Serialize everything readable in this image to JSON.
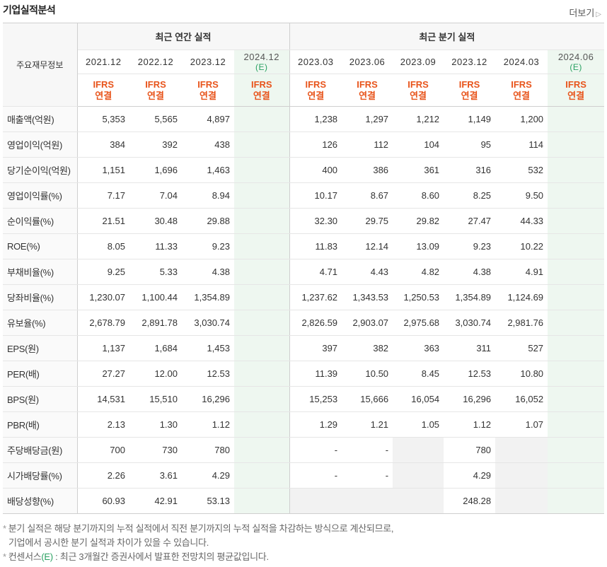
{
  "header": {
    "title": "기업실적분석",
    "more_label": "더보기",
    "more_arrow": "▷"
  },
  "table": {
    "side_label": "주요재무정보",
    "annual_group": "최근 연간 실적",
    "quarter_group": "최근 분기 실적",
    "ifrs_line1": "IFRS",
    "ifrs_line2": "연결",
    "estimate_mark": "(E)",
    "annual_periods": [
      "2021.12",
      "2022.12",
      "2023.12",
      "2024.12"
    ],
    "quarter_periods": [
      "2023.03",
      "2023.06",
      "2023.09",
      "2023.12",
      "2024.03",
      "2024.06"
    ],
    "rows": [
      {
        "label": "매출액(억원)",
        "values": [
          "5,353",
          "5,565",
          "4,897",
          "",
          "1,238",
          "1,297",
          "1,212",
          "1,149",
          "1,200",
          ""
        ]
      },
      {
        "label": "영업이익(억원)",
        "values": [
          "384",
          "392",
          "438",
          "",
          "126",
          "112",
          "104",
          "95",
          "114",
          ""
        ]
      },
      {
        "label": "당기순이익(억원)",
        "values": [
          "1,151",
          "1,696",
          "1,463",
          "",
          "400",
          "386",
          "361",
          "316",
          "532",
          ""
        ]
      },
      {
        "label": "영업이익률(%)",
        "values": [
          "7.17",
          "7.04",
          "8.94",
          "",
          "10.17",
          "8.67",
          "8.60",
          "8.25",
          "9.50",
          ""
        ]
      },
      {
        "label": "순이익률(%)",
        "values": [
          "21.51",
          "30.48",
          "29.88",
          "",
          "32.30",
          "29.75",
          "29.82",
          "27.47",
          "44.33",
          ""
        ]
      },
      {
        "label": "ROE(%)",
        "values": [
          "8.05",
          "11.33",
          "9.23",
          "",
          "11.83",
          "12.14",
          "13.09",
          "9.23",
          "10.22",
          ""
        ]
      },
      {
        "label": "부채비율(%)",
        "values": [
          "9.25",
          "5.33",
          "4.38",
          "",
          "4.71",
          "4.43",
          "4.82",
          "4.38",
          "4.91",
          ""
        ]
      },
      {
        "label": "당좌비율(%)",
        "values": [
          "1,230.07",
          "1,100.44",
          "1,354.89",
          "",
          "1,237.62",
          "1,343.53",
          "1,250.53",
          "1,354.89",
          "1,124.69",
          ""
        ]
      },
      {
        "label": "유보율(%)",
        "values": [
          "2,678.79",
          "2,891.78",
          "3,030.74",
          "",
          "2,826.59",
          "2,903.07",
          "2,975.68",
          "3,030.74",
          "2,981.76",
          ""
        ]
      },
      {
        "label": "EPS(원)",
        "values": [
          "1,137",
          "1,684",
          "1,453",
          "",
          "397",
          "382",
          "363",
          "311",
          "527",
          ""
        ]
      },
      {
        "label": "PER(배)",
        "values": [
          "27.27",
          "12.00",
          "12.53",
          "",
          "11.39",
          "10.50",
          "8.45",
          "12.53",
          "10.80",
          ""
        ]
      },
      {
        "label": "BPS(원)",
        "values": [
          "14,531",
          "15,510",
          "16,296",
          "",
          "15,253",
          "15,666",
          "16,054",
          "16,296",
          "16,052",
          ""
        ]
      },
      {
        "label": "PBR(배)",
        "values": [
          "2.13",
          "1.30",
          "1.12",
          "",
          "1.29",
          "1.21",
          "1.05",
          "1.12",
          "1.07",
          ""
        ]
      },
      {
        "label": "주당배당금(원)",
        "values": [
          "700",
          "730",
          "780",
          "",
          "-",
          "-",
          "",
          "780",
          "",
          ""
        ]
      },
      {
        "label": "시가배당률(%)",
        "values": [
          "2.26",
          "3.61",
          "4.29",
          "",
          "-",
          "-",
          "",
          "4.29",
          "",
          ""
        ]
      },
      {
        "label": "배당성향(%)",
        "values": [
          "60.93",
          "42.91",
          "53.13",
          "",
          "",
          "",
          "",
          "248.28",
          "",
          ""
        ]
      }
    ]
  },
  "notes": {
    "bullet": "*",
    "line1": "분기 실적은 해당 분기까지의 누적 실적에서 직전 분기까지의 누적 실적을 차감하는 방식으로 계산되므로,",
    "line2": "기업에서 공시한 분기 실적과 차이가 있을 수 있습니다.",
    "line3_prefix": "컨센서스",
    "line3_mark": "(E)",
    "line3_suffix": ": 최근 3개월간 증권사에서 발표한 전망치의 평균값입니다."
  },
  "colors": {
    "ifrs": "#e8541b",
    "estimate_bg": "#eef7f0",
    "estimate_text": "#2aa162",
    "gray_cell": "#f2f2f2"
  }
}
